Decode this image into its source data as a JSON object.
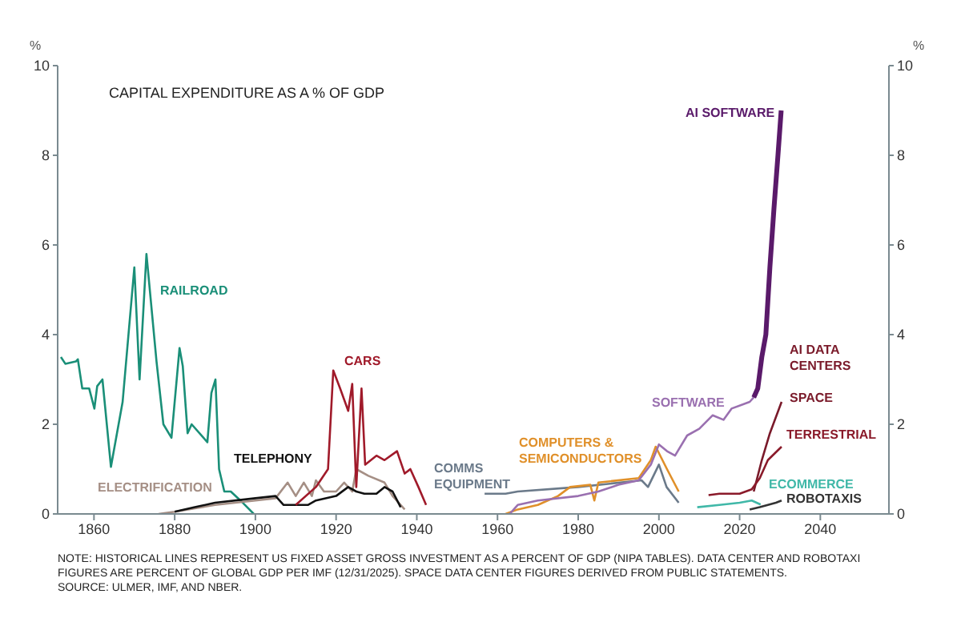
{
  "chart_data": {
    "type": "line",
    "title": "CAPITAL EXPENDITURE AS A % OF GDP",
    "ylabel": "%",
    "y2label": "%",
    "xlim": [
      1851,
      2057
    ],
    "xticks": [
      1860,
      1880,
      1900,
      1920,
      1940,
      1960,
      1980,
      2000,
      2020,
      2040
    ],
    "ylim": [
      0,
      10
    ],
    "yticks": [
      0,
      2,
      4,
      6,
      8,
      10
    ],
    "y2lim": [
      0,
      10
    ],
    "y2ticks": [
      0,
      2,
      4,
      6,
      8,
      10
    ],
    "marker": "none",
    "line_style": "solid",
    "annotations": [
      "AI DATA CENTERS",
      "NOTE: HISTORICAL LINES REPRESENT US FIXED ASSET GROSS INVESTMENT AS A PERCENT OF GDP (NIPA TABLES). DATA CENTER AND ROBOTAXI FIGURES ARE PERCENT OF GLOBAL GDP PER IMF (12/31/2025). SPACE DATA CENTER FIGURES DERIVED FROM PUBLIC STATEMENTS.",
      "SOURCE: ULMER, IMF, AND NBER."
    ],
    "series": [
      {
        "name": "RAILROAD",
        "color": "#1a8f78",
        "x": [
          1851.8,
          1852.9,
          1855.5,
          1856,
          1857.1,
          1858.8,
          1860.1,
          1860.8,
          1862.1,
          1864.2,
          1867.1,
          1870,
          1871.3,
          1873,
          1875.5,
          1877.2,
          1879.2,
          1881.2,
          1882,
          1883.2,
          1884.2,
          1888.1,
          1889.1,
          1890.1,
          1891,
          1892.3,
          1893.9,
          1896.3,
          1899.6
        ],
        "values": [
          3.5,
          3.35,
          3.4,
          3.45,
          2.8,
          2.8,
          2.35,
          2.85,
          3.0,
          1.05,
          2.5,
          5.5,
          3.0,
          5.8,
          3.4,
          2.0,
          1.7,
          3.7,
          3.3,
          1.8,
          2.0,
          1.6,
          2.7,
          3.0,
          1.0,
          0.5,
          0.5,
          0.3,
          0.0
        ]
      },
      {
        "name": "ELECTRIFICATION",
        "color": "#a58f85",
        "x": [
          1876,
          1880,
          1890,
          1900,
          1905,
          1908,
          1910,
          1912,
          1914,
          1915,
          1917,
          1920,
          1922,
          1924,
          1925,
          1928,
          1932,
          1934,
          1937
        ],
        "values": [
          0.0,
          0.05,
          0.2,
          0.3,
          0.35,
          0.7,
          0.4,
          0.7,
          0.4,
          0.75,
          0.5,
          0.5,
          0.7,
          0.5,
          1.0,
          0.85,
          0.7,
          0.4,
          0.1
        ]
      },
      {
        "name": "TELEPHONY",
        "color": "#111111",
        "x": [
          1880,
          1885,
          1890,
          1900,
          1905,
          1907,
          1910,
          1913,
          1915,
          1920,
          1923,
          1925,
          1927,
          1930,
          1932,
          1934,
          1936
        ],
        "values": [
          0.05,
          0.15,
          0.25,
          0.35,
          0.4,
          0.2,
          0.2,
          0.2,
          0.3,
          0.4,
          0.6,
          0.5,
          0.45,
          0.45,
          0.6,
          0.5,
          0.15
        ]
      },
      {
        "name": "CARS",
        "color": "#a01a2a",
        "x": [
          1910,
          1915,
          1918,
          1919.3,
          1921,
          1923,
          1924,
          1925,
          1926.3,
          1927.2,
          1930,
          1932,
          1935.1,
          1937,
          1938.4,
          1940.4,
          1942.3
        ],
        "values": [
          0.2,
          0.6,
          1.0,
          3.2,
          2.8,
          2.3,
          2.9,
          0.6,
          2.8,
          1.1,
          1.3,
          1.2,
          1.4,
          0.9,
          1.0,
          0.6,
          0.2
        ]
      },
      {
        "name": "COMMS EQUIPMENT",
        "color": "#6b7a8a",
        "x": [
          1956.8,
          1962,
          1965,
          1980,
          1995.7,
          1997.3,
          2000,
          2001.9,
          2004.9
        ],
        "values": [
          0.45,
          0.45,
          0.5,
          0.6,
          0.75,
          0.6,
          1.1,
          0.6,
          0.25
        ]
      },
      {
        "name": "COMPUTERS & SEMICONDUCTORS",
        "color": "#e0902a",
        "x": [
          1962,
          1965,
          1970,
          1975,
          1978,
          1983,
          1984,
          1985,
          1995,
          1998,
          1999.2,
          2002,
          2004.9
        ],
        "values": [
          0.0,
          0.1,
          0.2,
          0.4,
          0.6,
          0.65,
          0.3,
          0.7,
          0.8,
          1.2,
          1.5,
          1.0,
          0.5
        ]
      },
      {
        "name": "SOFTWARE",
        "color": "#9a70b0",
        "x": [
          1963,
          1965,
          1970,
          1980,
          1985,
          1990,
          1995,
          1998,
          2000,
          2002,
          2004,
          2007,
          2010,
          2013.3,
          2016,
          2018,
          2022.5,
          2023.5
        ],
        "values": [
          0.0,
          0.2,
          0.3,
          0.4,
          0.5,
          0.65,
          0.75,
          1.1,
          1.55,
          1.4,
          1.3,
          1.75,
          1.9,
          2.2,
          2.1,
          2.35,
          2.5,
          2.6
        ]
      },
      {
        "name": "AI SOFTWARE",
        "color": "#5a1a6a",
        "x": [
          2023.5,
          2024.5,
          2025.5,
          2026.5,
          2027.5,
          2028.5,
          2029.5,
          2030.3
        ],
        "values": [
          2.6,
          2.8,
          3.5,
          4.0,
          5.5,
          6.8,
          8.0,
          9.0
        ]
      },
      {
        "name": "SPACE",
        "color": "#7a1a2a",
        "x": [
          2023.5,
          2025.5,
          2027.5,
          2030.4
        ],
        "values": [
          0.5,
          1.2,
          1.8,
          2.5
        ]
      },
      {
        "name": "TERRESTRIAL",
        "color": "#8a1a2a",
        "x": [
          2012.3,
          2015,
          2018,
          2020,
          2023,
          2025,
          2027,
          2030.4
        ],
        "values": [
          0.42,
          0.45,
          0.45,
          0.45,
          0.55,
          0.8,
          1.2,
          1.5
        ]
      },
      {
        "name": "ECOMMERCE",
        "color": "#40b8a8",
        "x": [
          2009.5,
          2015,
          2020,
          2023,
          2025.2
        ],
        "values": [
          0.15,
          0.2,
          0.25,
          0.3,
          0.21
        ]
      },
      {
        "name": "ROBOTAXIS",
        "color": "#333333",
        "x": [
          2022.5,
          2025,
          2027,
          2029,
          2030.4
        ],
        "values": [
          0.1,
          0.15,
          0.2,
          0.25,
          0.3
        ]
      }
    ]
  }
}
